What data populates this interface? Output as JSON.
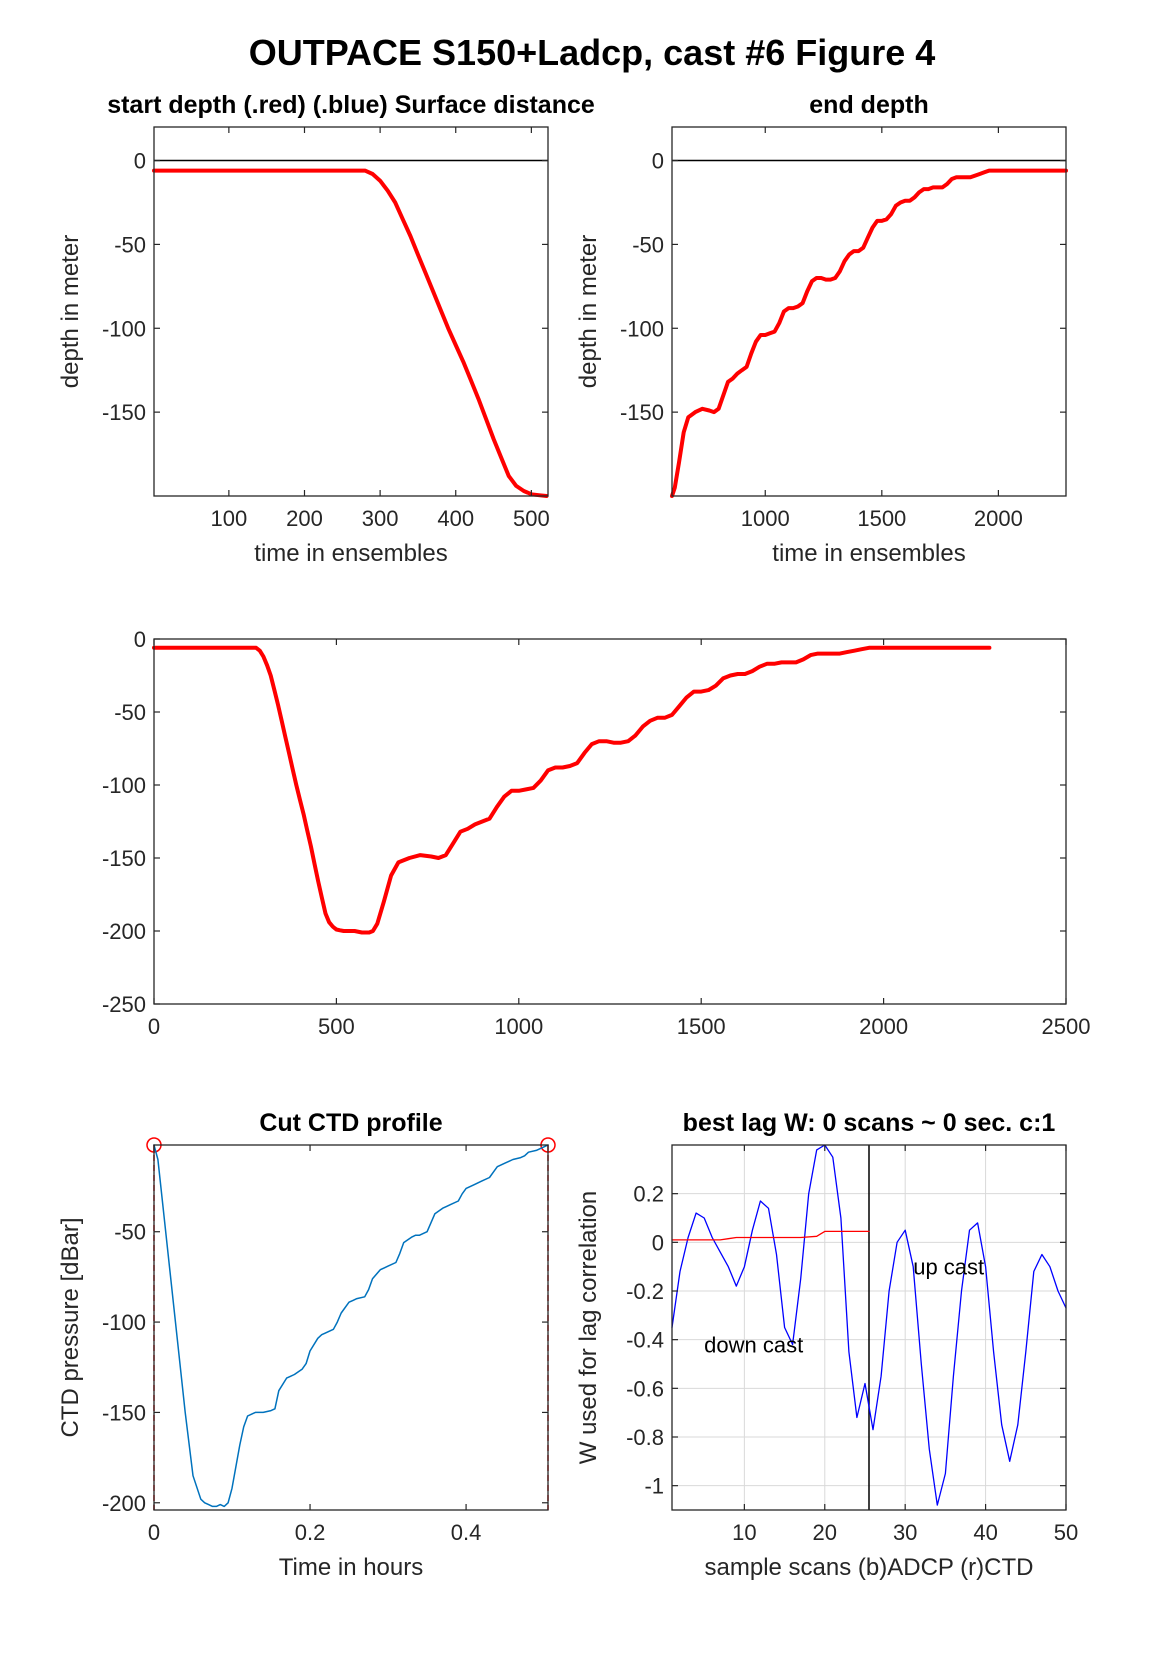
{
  "figure_title": "OUTPACE S150+Ladcp, cast #6   Figure 4",
  "chart_data": [
    {
      "id": "start",
      "type": "line",
      "title": "start depth (.red) (.blue) Surface distance",
      "xlabel": "time in ensembles",
      "ylabel": "depth in meter",
      "xlim": [
        1,
        522
      ],
      "ylim": [
        -200,
        20
      ],
      "xticks": [
        100,
        200,
        300,
        400,
        500
      ],
      "yticks": [
        0,
        -50,
        -100,
        -150
      ],
      "grid": false,
      "zero_line": true,
      "series": [
        {
          "color": "#ff0000",
          "width": 4,
          "x": [
            1,
            50,
            100,
            150,
            200,
            250,
            280,
            290,
            300,
            310,
            320,
            330,
            340,
            350,
            360,
            370,
            380,
            390,
            400,
            410,
            420,
            430,
            440,
            450,
            460,
            470,
            480,
            490,
            495,
            500,
            510,
            520
          ],
          "y": [
            -6,
            -6,
            -6,
            -6,
            -6,
            -6,
            -6,
            -8,
            -12,
            -18,
            -25,
            -35,
            -45,
            -56,
            -67,
            -78,
            -89,
            -100,
            -110,
            -120,
            -131,
            -142,
            -154,
            -166,
            -177,
            -188,
            -194,
            -197,
            -198,
            -199,
            -199.5,
            -200
          ]
        }
      ]
    },
    {
      "id": "end",
      "type": "line",
      "title": "end depth",
      "xlabel": "time in ensembles",
      "ylabel": "depth in meter",
      "xlim": [
        600,
        2290
      ],
      "ylim": [
        -200,
        20
      ],
      "xticks": [
        1000,
        1500,
        2000
      ],
      "yticks": [
        0,
        -50,
        -100,
        -150
      ],
      "grid": false,
      "zero_line": true,
      "series": [
        {
          "color": "#ff0000",
          "width": 4,
          "x": [
            600,
            612,
            630,
            650,
            670,
            680,
            700,
            730,
            760,
            780,
            800,
            820,
            840,
            860,
            880,
            900,
            920,
            940,
            960,
            980,
            1000,
            1020,
            1040,
            1060,
            1080,
            1100,
            1120,
            1140,
            1160,
            1180,
            1200,
            1220,
            1240,
            1260,
            1280,
            1300,
            1320,
            1340,
            1360,
            1380,
            1400,
            1420,
            1440,
            1460,
            1480,
            1500,
            1520,
            1540,
            1560,
            1580,
            1600,
            1620,
            1640,
            1660,
            1680,
            1700,
            1720,
            1740,
            1760,
            1780,
            1800,
            1820,
            1840,
            1860,
            1880,
            1900,
            1920,
            1940,
            1960,
            1980,
            2000,
            2020,
            2050,
            2100,
            2200,
            2290
          ],
          "y": [
            -200,
            -195,
            -180,
            -162,
            -153,
            -152,
            -150,
            -148,
            -149,
            -150,
            -148,
            -140,
            -132,
            -130,
            -127,
            -125,
            -123,
            -115,
            -108,
            -104,
            -104,
            -103,
            -102,
            -97,
            -90,
            -88,
            -88,
            -87,
            -85,
            -78,
            -72,
            -70,
            -70,
            -71,
            -71,
            -70,
            -66,
            -60,
            -56,
            -54,
            -54,
            -52,
            -46,
            -40,
            -36,
            -36,
            -35,
            -32,
            -27,
            -25,
            -24,
            -24,
            -22,
            -19,
            -17,
            -17,
            -16,
            -16,
            -16,
            -14,
            -11,
            -10,
            -10,
            -10,
            -10,
            -9,
            -8,
            -7,
            -6,
            -6,
            -6,
            -6,
            -6,
            -6,
            -6,
            -6
          ]
        }
      ]
    },
    {
      "id": "full",
      "type": "line",
      "title": "",
      "xlabel": "",
      "ylabel": "",
      "xlim": [
        0,
        2500
      ],
      "ylim": [
        -250,
        0
      ],
      "xticks": [
        0,
        500,
        1000,
        1500,
        2000,
        2500
      ],
      "yticks": [
        0,
        -50,
        -100,
        -150,
        -200,
        -250
      ],
      "grid": false,
      "zero_line": false,
      "series": [
        {
          "color": "#ff0000",
          "width": 4,
          "x": [
            0,
            50,
            100,
            150,
            200,
            250,
            280,
            290,
            300,
            310,
            320,
            330,
            340,
            350,
            360,
            370,
            380,
            390,
            400,
            410,
            420,
            430,
            440,
            450,
            460,
            470,
            480,
            490,
            495,
            500,
            510,
            520,
            530,
            550,
            570,
            590,
            600,
            612,
            630,
            650,
            670,
            680,
            700,
            730,
            760,
            780,
            800,
            820,
            840,
            860,
            880,
            900,
            920,
            940,
            960,
            980,
            1000,
            1020,
            1040,
            1060,
            1080,
            1100,
            1120,
            1140,
            1160,
            1180,
            1200,
            1220,
            1240,
            1260,
            1280,
            1300,
            1320,
            1340,
            1360,
            1380,
            1400,
            1420,
            1440,
            1460,
            1480,
            1500,
            1520,
            1540,
            1560,
            1580,
            1600,
            1620,
            1640,
            1660,
            1680,
            1700,
            1720,
            1740,
            1760,
            1780,
            1800,
            1820,
            1840,
            1860,
            1880,
            1900,
            1920,
            1940,
            1960,
            1980,
            2000,
            2020,
            2050,
            2100,
            2200,
            2290
          ],
          "y": [
            -6,
            -6,
            -6,
            -6,
            -6,
            -6,
            -6,
            -8,
            -12,
            -18,
            -25,
            -35,
            -45,
            -56,
            -67,
            -78,
            -89,
            -100,
            -110,
            -120,
            -131,
            -142,
            -154,
            -166,
            -177,
            -188,
            -194,
            -197,
            -198,
            -199,
            -199.5,
            -200,
            -200,
            -200,
            -201,
            -201,
            -200,
            -195,
            -180,
            -162,
            -153,
            -152,
            -150,
            -148,
            -149,
            -150,
            -148,
            -140,
            -132,
            -130,
            -127,
            -125,
            -123,
            -115,
            -108,
            -104,
            -104,
            -103,
            -102,
            -97,
            -90,
            -88,
            -88,
            -87,
            -85,
            -78,
            -72,
            -70,
            -70,
            -71,
            -71,
            -70,
            -66,
            -60,
            -56,
            -54,
            -54,
            -52,
            -46,
            -40,
            -36,
            -36,
            -35,
            -32,
            -27,
            -25,
            -24,
            -24,
            -22,
            -19,
            -17,
            -17,
            -16,
            -16,
            -16,
            -14,
            -11,
            -10,
            -10,
            -10,
            -10,
            -9,
            -8,
            -7,
            -6,
            -6,
            -6,
            -6,
            -6,
            -6,
            -6,
            -6
          ]
        }
      ]
    },
    {
      "id": "ctd",
      "type": "line",
      "title": "Cut CTD profile",
      "xlabel": "Time in hours",
      "ylabel": "CTD pressure [dBar]",
      "xlim": [
        0,
        0.505
      ],
      "ylim": [
        -204,
        -2
      ],
      "xticks": [
        0,
        0.2,
        0.4
      ],
      "yticks": [
        -50,
        -100,
        -150,
        -200
      ],
      "grid": false,
      "zero_line": false,
      "cut_markers": [
        0.0,
        0.505
      ],
      "series": [
        {
          "color": "#0072bd",
          "width": 1.5,
          "x": [
            0,
            0.005,
            0.01,
            0.02,
            0.03,
            0.04,
            0.05,
            0.06,
            0.065,
            0.07,
            0.075,
            0.08,
            0.085,
            0.09,
            0.095,
            0.1,
            0.105,
            0.11,
            0.115,
            0.12,
            0.125,
            0.13,
            0.14,
            0.15,
            0.155,
            0.16,
            0.17,
            0.175,
            0.18,
            0.19,
            0.195,
            0.2,
            0.21,
            0.215,
            0.22,
            0.23,
            0.235,
            0.24,
            0.25,
            0.255,
            0.26,
            0.27,
            0.275,
            0.28,
            0.29,
            0.295,
            0.3,
            0.31,
            0.315,
            0.32,
            0.33,
            0.335,
            0.34,
            0.35,
            0.355,
            0.36,
            0.37,
            0.375,
            0.38,
            0.39,
            0.395,
            0.4,
            0.41,
            0.415,
            0.42,
            0.43,
            0.435,
            0.44,
            0.45,
            0.455,
            0.46,
            0.47,
            0.475,
            0.48,
            0.49,
            0.5,
            0.505
          ],
          "y": [
            -2,
            -10,
            -30,
            -70,
            -110,
            -150,
            -185,
            -198,
            -200,
            -201,
            -202,
            -202,
            -201,
            -202,
            -200,
            -192,
            -180,
            -168,
            -158,
            -152,
            -151,
            -150,
            -150,
            -149,
            -148,
            -138,
            -131,
            -130,
            -129,
            -126,
            -123,
            -116,
            -109,
            -107,
            -106,
            -104,
            -100,
            -95,
            -89,
            -88,
            -87,
            -86,
            -82,
            -76,
            -71,
            -70,
            -69,
            -67,
            -62,
            -56,
            -53,
            -52,
            -52,
            -50,
            -45,
            -40,
            -37,
            -36,
            -35,
            -33,
            -29,
            -26,
            -24,
            -23,
            -22,
            -20,
            -17,
            -14,
            -12,
            -11,
            -10,
            -9,
            -8,
            -6,
            -5,
            -3,
            -2
          ]
        }
      ]
    },
    {
      "id": "lag",
      "type": "line",
      "title": "best lag W: 0 scans ~ 0 sec.  c:1",
      "xlabel": "sample scans (b)ADCP (r)CTD",
      "ylabel": "W used for lag correlation",
      "xlim": [
        1,
        50
      ],
      "ylim": [
        -1.1,
        0.4
      ],
      "xticks": [
        10,
        20,
        30,
        40,
        50
      ],
      "yticks": [
        0.2,
        0,
        -0.2,
        -0.4,
        -0.6,
        -0.8,
        -1
      ],
      "grid": true,
      "zero_line": false,
      "vline_x": 25.5,
      "annotations": [
        {
          "text": "down cast",
          "x": 5,
          "y": -0.42
        },
        {
          "text": "up cast",
          "x": 31,
          "y": -0.1
        }
      ],
      "series": [
        {
          "color": "#0000ff",
          "width": 1.3,
          "x": [
            1,
            2,
            3,
            4,
            5,
            6,
            7,
            8,
            9,
            10,
            11,
            12,
            13,
            14,
            15,
            16,
            17,
            18,
            19,
            20,
            21,
            22,
            23,
            24,
            25,
            26,
            27,
            28,
            29,
            30,
            31,
            32,
            33,
            34,
            35,
            36,
            37,
            38,
            39,
            40,
            41,
            42,
            43,
            44,
            45,
            46,
            47,
            48,
            49,
            50
          ],
          "y": [
            -0.35,
            -0.12,
            0.02,
            0.12,
            0.1,
            0.02,
            -0.04,
            -0.1,
            -0.18,
            -0.1,
            0.05,
            0.17,
            0.14,
            -0.05,
            -0.35,
            -0.42,
            -0.15,
            0.2,
            0.38,
            0.4,
            0.35,
            0.1,
            -0.45,
            -0.72,
            -0.58,
            -0.77,
            -0.55,
            -0.2,
            0.0,
            0.05,
            -0.1,
            -0.5,
            -0.85,
            -1.08,
            -0.95,
            -0.55,
            -0.2,
            0.05,
            0.08,
            -0.1,
            -0.45,
            -0.75,
            -0.9,
            -0.75,
            -0.45,
            -0.12,
            -0.05,
            -0.1,
            -0.2,
            -0.27
          ]
        },
        {
          "color": "#ff0000",
          "width": 1.3,
          "x": [
            1,
            3,
            5,
            7,
            8,
            9,
            11,
            13,
            15,
            17,
            19,
            19.5,
            20,
            22,
            24,
            25.5
          ],
          "y": [
            0.01,
            0.01,
            0.01,
            0.01,
            0.015,
            0.02,
            0.02,
            0.02,
            0.02,
            0.02,
            0.025,
            0.035,
            0.045,
            0.045,
            0.045,
            0.045
          ]
        }
      ]
    }
  ]
}
